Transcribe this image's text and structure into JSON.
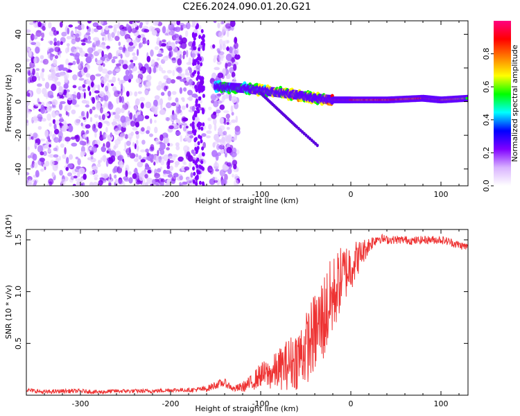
{
  "title": "C2E6.2024.090.01.20.G21",
  "chart_data": [
    {
      "type": "heatmap",
      "xlabel": "Height of straight line (km)",
      "ylabel": "Frequency (Hz)",
      "xlim": [
        -360,
        130
      ],
      "ylim": [
        -50,
        48
      ],
      "x_ticks": [
        -300,
        -200,
        -100,
        0,
        100
      ],
      "x_tick_labels": [
        "-300",
        "-200",
        "-100",
        "0",
        "100"
      ],
      "y_ticks": [
        -40,
        -20,
        0,
        20,
        40
      ],
      "y_tick_labels": [
        "-40",
        "-20",
        "0",
        "20",
        "40"
      ],
      "colorbar": {
        "label": "Normalized spectral amplitude",
        "range": [
          0,
          1
        ],
        "ticks": [
          0.0,
          0.2,
          0.4,
          0.6,
          0.8
        ],
        "tick_labels": [
          "0.0",
          "0.2",
          "0.4",
          "0.6",
          "0.8"
        ],
        "colors": [
          "#ffffff",
          "#d9b3ff",
          "#8000ff",
          "#0000ff",
          "#00ffff",
          "#00ff00",
          "#ffff00",
          "#ff8000",
          "#ff0000",
          "#ff0080"
        ]
      },
      "features": {
        "noise_region_x": [
          -360,
          -125
        ],
        "noise_gap_x": [
          -165,
          -155
        ],
        "carrier_trace": [
          {
            "x": -150,
            "y": 9,
            "amp": 0.5
          },
          {
            "x": -120,
            "y": 8,
            "amp": 0.5
          },
          {
            "x": -90,
            "y": 6,
            "amp": 0.6
          },
          {
            "x": -60,
            "y": 4,
            "amp": 0.65
          },
          {
            "x": -40,
            "y": 2,
            "amp": 0.6
          },
          {
            "x": -20,
            "y": 1,
            "amp": 0.8
          },
          {
            "x": 0,
            "y": 1,
            "amp": 0.85
          },
          {
            "x": 40,
            "y": 1,
            "amp": 0.85
          },
          {
            "x": 80,
            "y": 2,
            "amp": 0.8
          },
          {
            "x": 100,
            "y": 1,
            "amp": 0.8
          },
          {
            "x": 130,
            "y": 2,
            "amp": 0.6
          }
        ],
        "side_branch": [
          {
            "x": -100,
            "y": 5
          },
          {
            "x": -80,
            "y": -5
          },
          {
            "x": -60,
            "y": -15
          },
          {
            "x": -35,
            "y": -27
          }
        ]
      }
    },
    {
      "type": "line",
      "xlabel": "Height of straight line (km)",
      "ylabel": "SNR (10 * v/v)",
      "y_scale_label": "(x10⁴)",
      "xlim": [
        -360,
        130
      ],
      "ylim": [
        0,
        1.6
      ],
      "x_ticks": [
        -300,
        -200,
        -100,
        0,
        100
      ],
      "x_tick_labels": [
        "-300",
        "-200",
        "-100",
        "0",
        "100"
      ],
      "y_ticks": [
        0.5,
        1.0,
        1.5
      ],
      "y_tick_labels": [
        "0.5",
        "1.0",
        "1.5"
      ],
      "color": "#ee3333",
      "x": [
        -360,
        -340,
        -320,
        -300,
        -280,
        -260,
        -240,
        -220,
        -200,
        -180,
        -160,
        -150,
        -140,
        -130,
        -120,
        -110,
        -100,
        -90,
        -80,
        -70,
        -60,
        -50,
        -40,
        -30,
        -20,
        -10,
        0,
        10,
        20,
        30,
        40,
        50,
        60,
        70,
        80,
        90,
        100,
        110,
        120,
        130
      ],
      "y": [
        0.05,
        0.03,
        0.04,
        0.04,
        0.03,
        0.04,
        0.04,
        0.04,
        0.05,
        0.05,
        0.06,
        0.1,
        0.12,
        0.06,
        0.08,
        0.12,
        0.2,
        0.2,
        0.25,
        0.3,
        0.35,
        0.45,
        0.6,
        0.75,
        0.95,
        1.15,
        1.25,
        1.35,
        1.45,
        1.52,
        1.5,
        1.5,
        1.5,
        1.49,
        1.5,
        1.5,
        1.5,
        1.48,
        1.45,
        1.43
      ],
      "noise_amplitude": [
        0.02,
        0.02,
        0.02,
        0.02,
        0.02,
        0.02,
        0.02,
        0.02,
        0.02,
        0.02,
        0.03,
        0.04,
        0.04,
        0.03,
        0.05,
        0.08,
        0.12,
        0.15,
        0.2,
        0.25,
        0.3,
        0.35,
        0.4,
        0.45,
        0.4,
        0.3,
        0.25,
        0.15,
        0.08,
        0.05,
        0.04,
        0.04,
        0.04,
        0.04,
        0.04,
        0.04,
        0.04,
        0.04,
        0.04,
        0.04
      ]
    }
  ]
}
